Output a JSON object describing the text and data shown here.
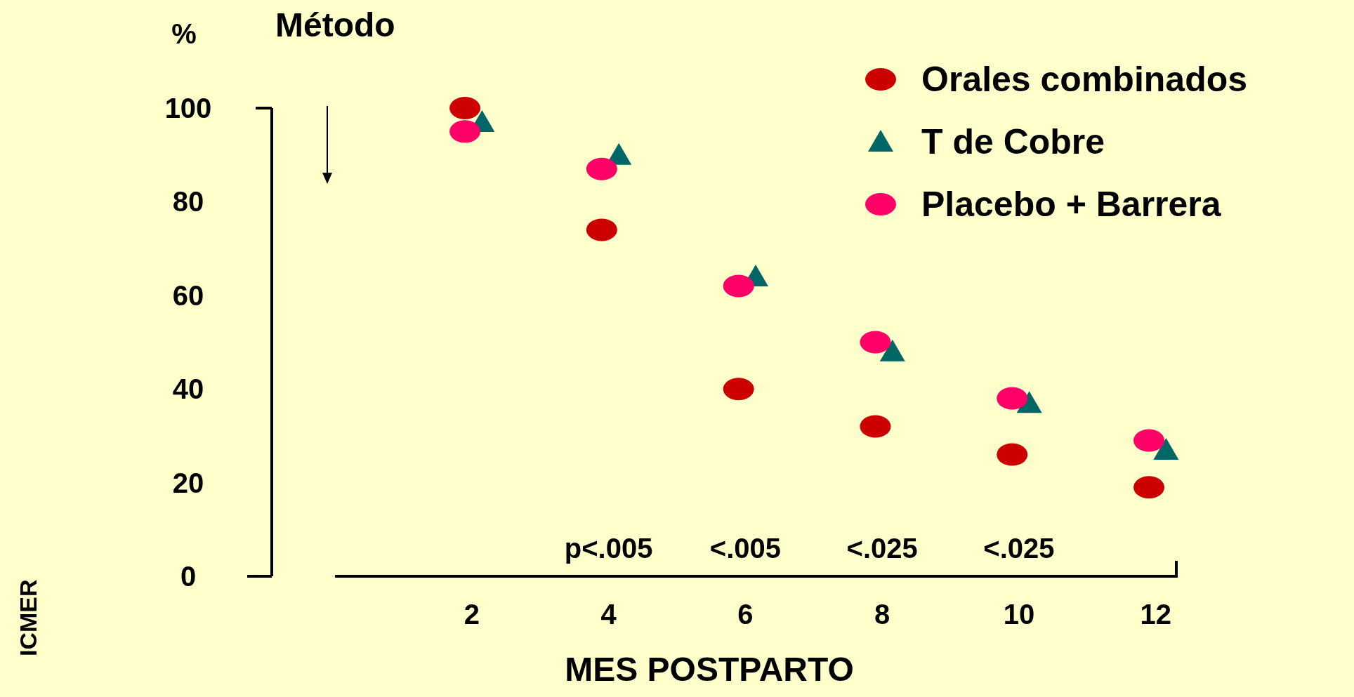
{
  "chart_data": {
    "type": "scatter",
    "xlabel": "MES POSTPARTO",
    "ylabel": "%",
    "xlim": [
      0,
      12.3
    ],
    "xticks": [
      2,
      4,
      6,
      8,
      10,
      12
    ],
    "ylim": [
      0,
      100
    ],
    "yticks": [
      0,
      20,
      40,
      60,
      80,
      100
    ],
    "grid": false,
    "legend": "top right",
    "series": [
      {
        "name": "Orales combinados",
        "color": "#cc0000",
        "marker": "circle",
        "x": [
          1.9,
          3.9,
          5.9,
          7.9,
          9.9,
          11.9
        ],
        "values": [
          100,
          74,
          40,
          32,
          26,
          19
        ]
      },
      {
        "name": "T de Cobre",
        "color": "#006666",
        "marker": "triangle",
        "x": [
          2.15,
          4.15,
          6.15,
          8.15,
          10.15,
          12.15
        ],
        "values": [
          97,
          90,
          64,
          48,
          37,
          27
        ]
      },
      {
        "name": "Placebo + Barrera",
        "color": "#ff0066",
        "marker": "circle",
        "x": [
          1.9,
          3.9,
          5.9,
          7.9,
          9.9,
          11.9
        ],
        "values": [
          95,
          87,
          62,
          50,
          38,
          29
        ]
      }
    ],
    "annotations": [
      "Método",
      "p<.005",
      "<.005",
      "<.025",
      "<.025",
      "ICMER"
    ]
  }
}
